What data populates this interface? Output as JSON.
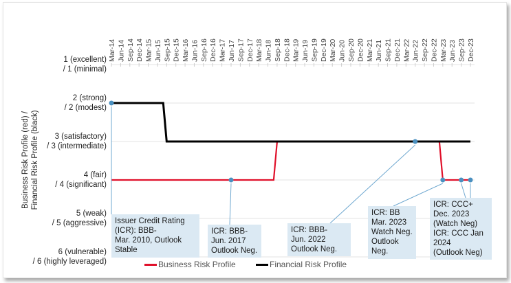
{
  "chart_data": {
    "type": "line",
    "ylabel": "Business Risk Profile (red) / Financial Risk Profile (black)",
    "categories": [
      "Mar-14",
      "Jun-14",
      "Sep-14",
      "Dec-14",
      "Mar-15",
      "Jun-15",
      "Sep-15",
      "Dec-15",
      "Mar-16",
      "Jun-16",
      "Sep-16",
      "Dec-16",
      "Mar-17",
      "Jun-17",
      "Sep-17",
      "Dec-17",
      "Mar-18",
      "Jun-18",
      "Sep-18",
      "Dec-18",
      "Mar-19",
      "Jun-19",
      "Sep-19",
      "Dec-19",
      "Mar-20",
      "Jun-20",
      "Sep-20",
      "Dec-20",
      "Mar-21",
      "Jun-21",
      "Sep-21",
      "Dec-21",
      "Mar-22",
      "Jun-22",
      "Sep-22",
      "Dec-22",
      "Mar-23",
      "Jun-23",
      "Sep-23",
      "Dec-23"
    ],
    "y_ticks": [
      {
        "value": 1,
        "label1": "1 (excellent)",
        "label2": "/ 1 (minimal)"
      },
      {
        "value": 2,
        "label1": "2 (strong)",
        "label2": "/ 2 (modest)"
      },
      {
        "value": 3,
        "label1": "3 (satisfactory)",
        "label2": "/ 3 (intermediate)"
      },
      {
        "value": 4,
        "label1": "4 (fair)",
        "label2": "/ 4 (significant)"
      },
      {
        "value": 5,
        "label1": "5 (weak)",
        "label2": "/ 5 (aggressive)"
      },
      {
        "value": 6,
        "label1": "6 (vulnerable)",
        "label2": "/ 6 (highly leveraged)"
      }
    ],
    "ylim": [
      1,
      6
    ],
    "y_inverted": true,
    "grid": true,
    "legend_position": "bottom",
    "series": [
      {
        "name": "Business Risk Profile",
        "color": "#e0102a",
        "values": [
          4,
          4,
          4,
          4,
          4,
          4,
          4,
          4,
          4,
          4,
          4,
          4,
          4,
          4,
          4,
          4,
          4,
          4,
          3,
          3,
          3,
          3,
          3,
          3,
          3,
          3,
          3,
          3,
          3,
          3,
          3,
          3,
          3,
          3,
          3,
          3,
          4,
          4,
          4,
          4
        ]
      },
      {
        "name": "Financial Risk Profile",
        "color": "#000000",
        "values": [
          2,
          2,
          2,
          2,
          2,
          2,
          3,
          3,
          3,
          3,
          3,
          3,
          3,
          3,
          3,
          3,
          3,
          3,
          3,
          3,
          3,
          3,
          3,
          3,
          3,
          3,
          3,
          3,
          3,
          3,
          3,
          3,
          3,
          3,
          3,
          3,
          3,
          3,
          3,
          3
        ]
      }
    ],
    "marker_color": "#4a90c0",
    "annotations": [
      {
        "lines": [
          "Issuer Credit Rating",
          "(ICR): BBB-",
          "Mar. 2010, Outlook",
          "Stable"
        ],
        "at": "Mar-14",
        "value": 2
      },
      {
        "lines": [
          "ICR: BBB-",
          "Jun. 2017",
          "Outlook Neg."
        ],
        "at": "Jun-17",
        "value": 4
      },
      {
        "lines": [
          "ICR: BBB-",
          "Jun. 2022",
          "Outlook Neg."
        ],
        "at": "Jun-22",
        "value": 3
      },
      {
        "lines": [
          "ICR: BB",
          "Mar. 2023",
          "Watch Neg.",
          "Outlook",
          "Neg."
        ],
        "at": "Mar-23",
        "value": 4
      },
      {
        "lines": [
          "ICR: CCC+",
          "Dec. 2023",
          "(Watch Neg)",
          "ICR: CCC Jan",
          "2024",
          "(Outlook Neg)"
        ],
        "at": "Sep-23",
        "value": 4
      }
    ],
    "extra_markers": [
      {
        "at": "Dec-23",
        "value": 4
      }
    ]
  }
}
